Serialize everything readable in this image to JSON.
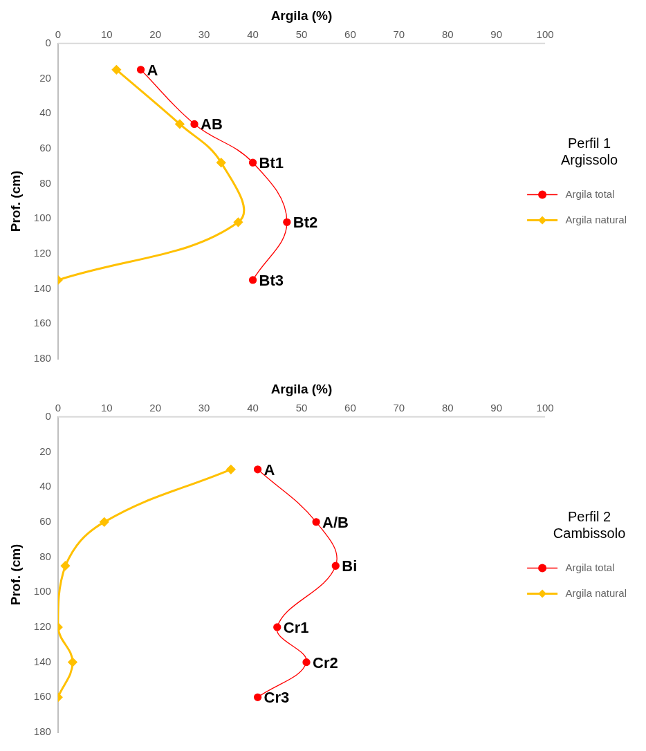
{
  "chart_data": [
    {
      "type": "line",
      "xlabel": "Argila (%)",
      "ylabel": "Prof. (cm)",
      "legend_title": "Perfil 1\nArgissolo",
      "legend": "right",
      "grid": false,
      "xlim": [
        0,
        100
      ],
      "xticks": [
        0,
        10,
        20,
        30,
        40,
        50,
        60,
        70,
        80,
        90,
        100
      ],
      "ylim": [
        180,
        0
      ],
      "yticks": [
        0,
        20,
        40,
        60,
        80,
        100,
        120,
        140,
        160,
        180
      ],
      "series": [
        {
          "name": "Argila total",
          "color": "#ff0000",
          "marker": "circle",
          "x": [
            17,
            28,
            40,
            47,
            40
          ],
          "values": [
            15,
            46,
            68,
            102,
            135
          ]
        },
        {
          "name": "Argila natural",
          "color": "#ffc000",
          "marker": "diamond",
          "x": [
            12,
            25,
            33.5,
            37,
            0
          ],
          "values": [
            15,
            46,
            68,
            102,
            135
          ]
        }
      ],
      "annotations": [
        {
          "text": "A",
          "x": 17,
          "y": 15
        },
        {
          "text": "AB",
          "x": 28,
          "y": 46
        },
        {
          "text": "Bt1",
          "x": 40,
          "y": 68
        },
        {
          "text": "Bt2",
          "x": 47,
          "y": 102
        },
        {
          "text": "Bt3",
          "x": 40,
          "y": 135
        }
      ]
    },
    {
      "type": "line",
      "xlabel": "Argila (%)",
      "ylabel": "Prof. (cm)",
      "legend_title": "Perfil 2\nCambissolo",
      "legend": "right",
      "grid": false,
      "xlim": [
        0,
        100
      ],
      "xticks": [
        0,
        10,
        20,
        30,
        40,
        50,
        60,
        70,
        80,
        90,
        100
      ],
      "ylim": [
        180,
        0
      ],
      "yticks": [
        0,
        20,
        40,
        60,
        80,
        100,
        120,
        140,
        160,
        180
      ],
      "series": [
        {
          "name": "Argila total",
          "color": "#ff0000",
          "marker": "circle",
          "x": [
            41,
            53,
            57,
            45,
            51,
            41
          ],
          "values": [
            30,
            60,
            85,
            120,
            140,
            160
          ]
        },
        {
          "name": "Argila natural",
          "color": "#ffc000",
          "marker": "diamond",
          "x": [
            35.5,
            9.5,
            1.5,
            0,
            3,
            0
          ],
          "values": [
            30,
            60,
            85,
            120,
            140,
            160
          ]
        }
      ],
      "annotations": [
        {
          "text": "A",
          "x": 41,
          "y": 30
        },
        {
          "text": "A/B",
          "x": 53,
          "y": 60
        },
        {
          "text": "Bi",
          "x": 57,
          "y": 85
        },
        {
          "text": "Cr1",
          "x": 45,
          "y": 120
        },
        {
          "text": "Cr2",
          "x": 51,
          "y": 140
        },
        {
          "text": "Cr3",
          "x": 41,
          "y": 160
        }
      ]
    }
  ]
}
